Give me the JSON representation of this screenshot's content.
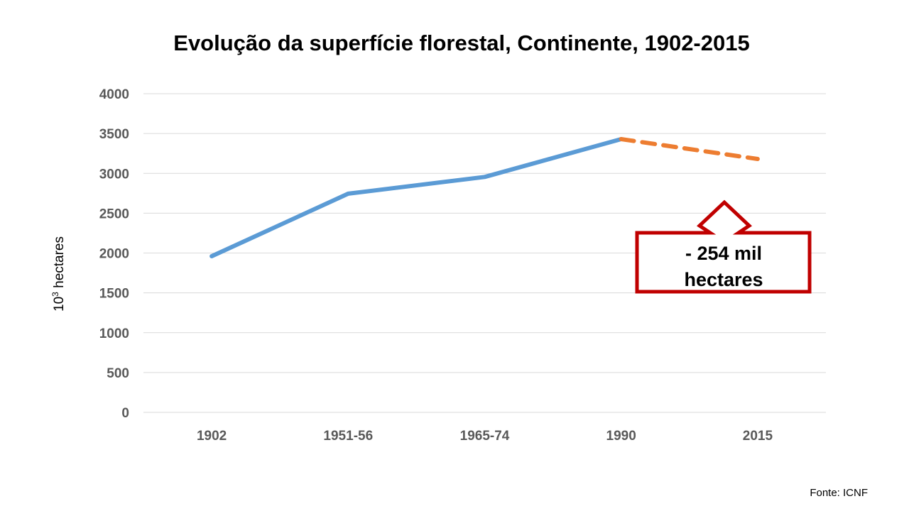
{
  "chart_data": {
    "type": "line",
    "title": "Evolução da superfície florestal, Continente, 1902-2015",
    "ylabel_base": "10",
    "ylabel_sup": "3",
    "ylabel_rest": " hectares",
    "xlabel": "",
    "categories": [
      "1902",
      "1951-56",
      "1965-74",
      "1990",
      "2015"
    ],
    "ylim": [
      0,
      4000
    ],
    "yticks": [
      0,
      500,
      1000,
      1500,
      2000,
      2500,
      3000,
      3500,
      4000
    ],
    "grid": true,
    "series": [
      {
        "values": [
          1960,
          2745,
          2955,
          3430,
          null
        ],
        "color": "#5B9BD5",
        "style": "solid"
      },
      {
        "values": [
          null,
          null,
          null,
          3430,
          3180
        ],
        "color": "#ED7D31",
        "style": "dashed"
      }
    ],
    "annotation": {
      "line1": "- 254 mil",
      "line2": "hectares",
      "border_color": "#C00000"
    },
    "source": "Fonte: ICNF"
  }
}
